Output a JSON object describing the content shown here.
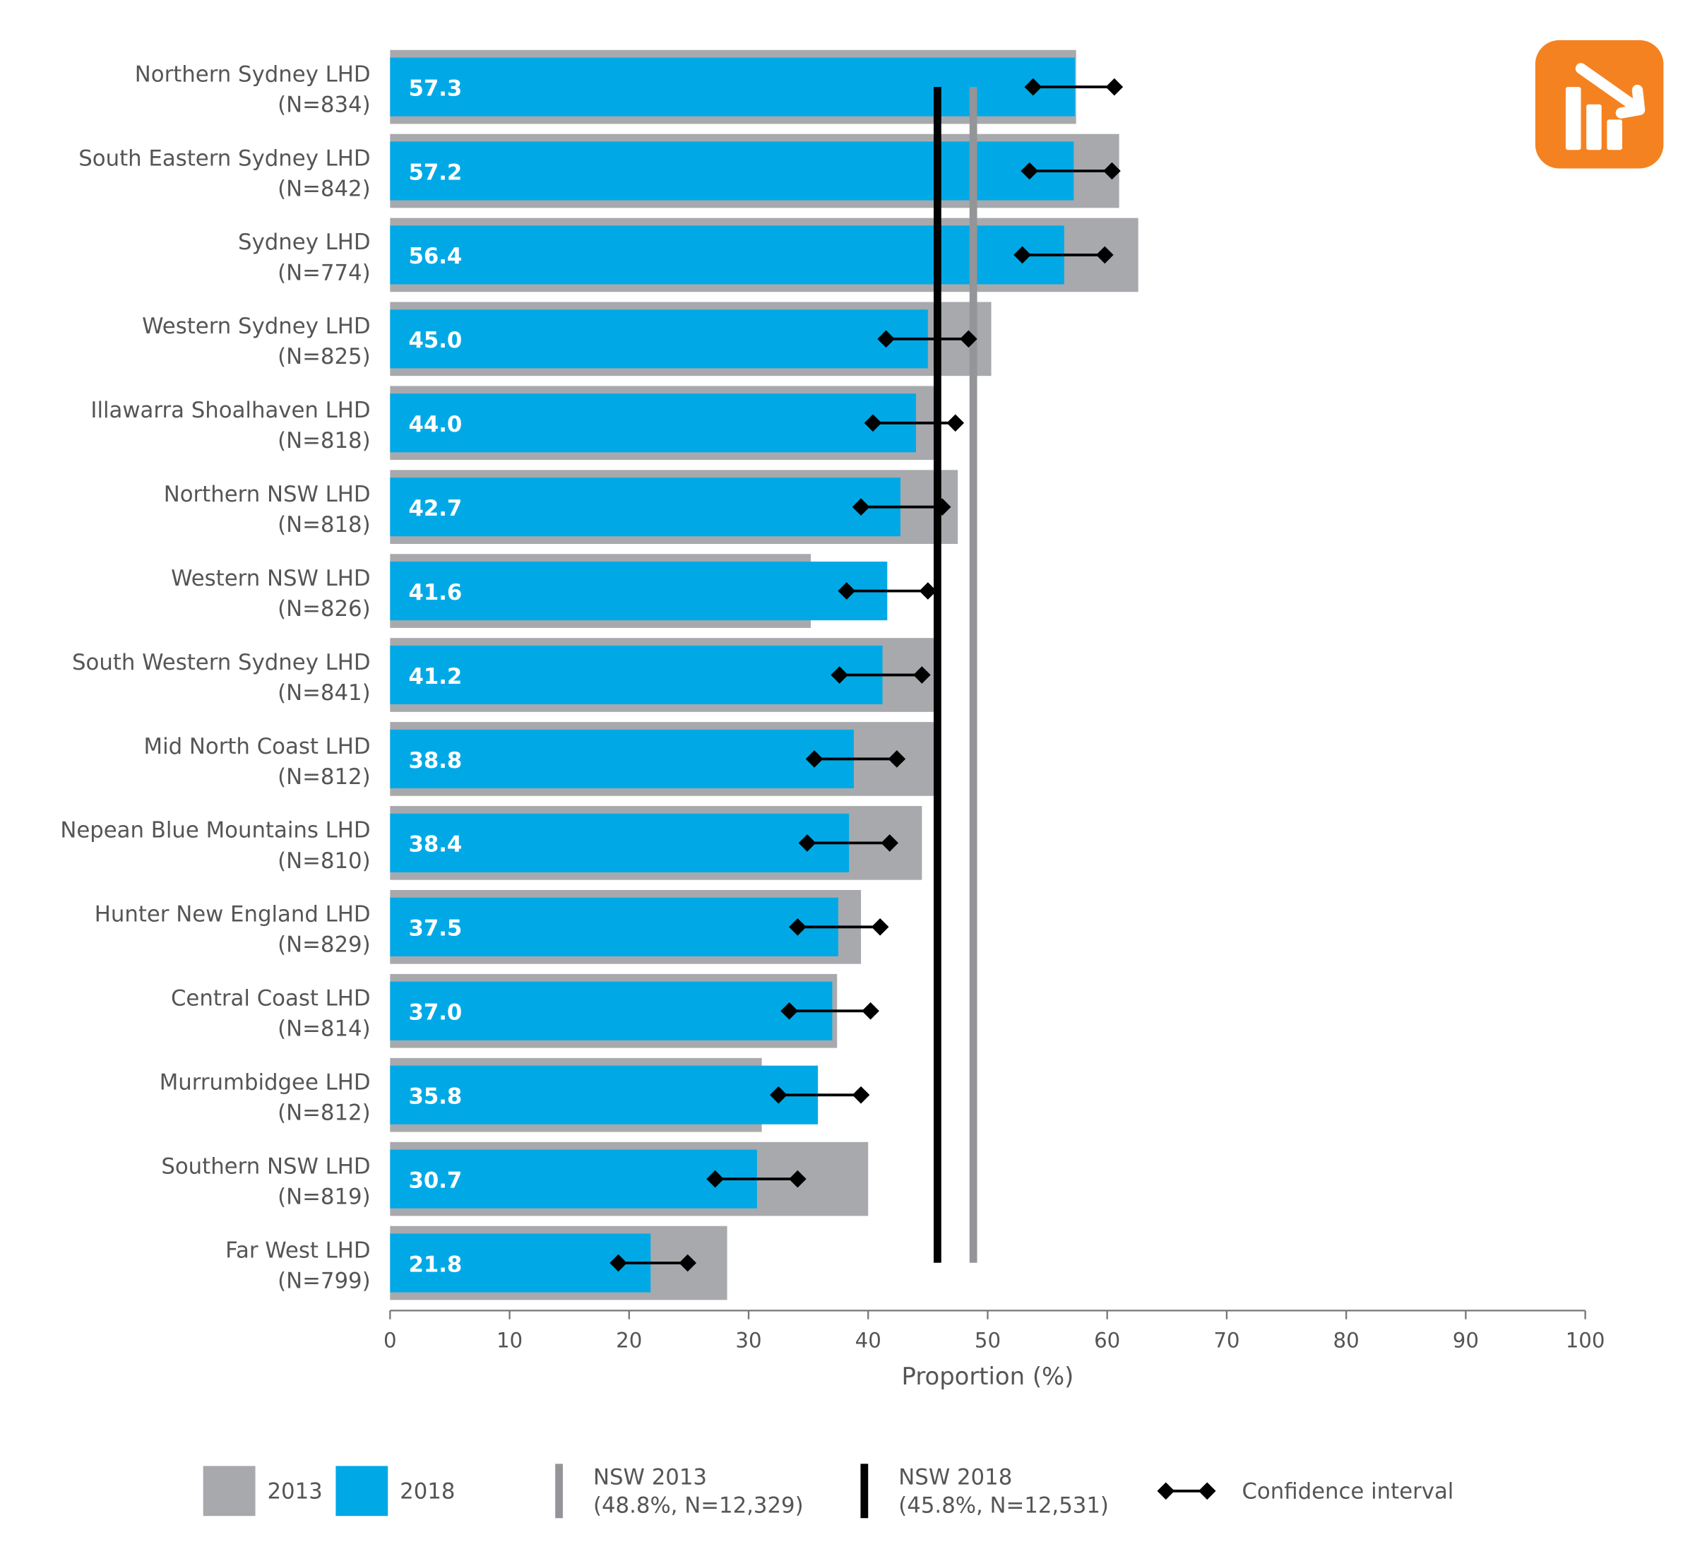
{
  "chart_data": {
    "type": "bar",
    "orientation": "horizontal",
    "xlabel": "Proportion (%)",
    "xlim": [
      0,
      100
    ],
    "xticks": [
      0,
      10,
      20,
      30,
      40,
      50,
      60,
      70,
      80,
      90,
      100
    ],
    "categories": [
      {
        "name": "Northern Sydney LHD",
        "n": "(N=834)"
      },
      {
        "name": "South Eastern Sydney LHD",
        "n": "(N=842)"
      },
      {
        "name": "Sydney LHD",
        "n": "(N=774)"
      },
      {
        "name": "Western Sydney LHD",
        "n": "(N=825)"
      },
      {
        "name": "Illawarra Shoalhaven LHD",
        "n": "(N=818)"
      },
      {
        "name": "Northern NSW LHD",
        "n": "(N=818)"
      },
      {
        "name": "Western NSW LHD",
        "n": "(N=826)"
      },
      {
        "name": "South Western Sydney LHD",
        "n": "(N=841)"
      },
      {
        "name": "Mid North Coast LHD",
        "n": "(N=812)"
      },
      {
        "name": "Nepean Blue Mountains LHD",
        "n": "(N=810)"
      },
      {
        "name": "Hunter New England LHD",
        "n": "(N=829)"
      },
      {
        "name": "Central Coast LHD",
        "n": "(N=814)"
      },
      {
        "name": "Murrumbidgee LHD",
        "n": "(N=812)"
      },
      {
        "name": "Southern NSW LHD",
        "n": "(N=819)"
      },
      {
        "name": "Far West LHD",
        "n": "(N=799)"
      }
    ],
    "series": [
      {
        "name": "2013",
        "color": "#a7a9ac",
        "values": [
          57.4,
          61.0,
          62.6,
          50.3,
          45.6,
          47.5,
          35.2,
          45.6,
          45.6,
          44.5,
          39.4,
          37.4,
          31.1,
          40.0,
          28.2
        ]
      },
      {
        "name": "2018",
        "color": "#00a9e6",
        "values": [
          57.3,
          57.2,
          56.4,
          45.0,
          44.0,
          42.7,
          41.6,
          41.2,
          38.8,
          38.4,
          37.5,
          37.0,
          35.8,
          30.7,
          21.8
        ],
        "labels": [
          "57.3",
          "57.2",
          "56.4",
          "45.0",
          "44.0",
          "42.7",
          "41.6",
          "41.2",
          "38.8",
          "38.4",
          "37.5",
          "37.0",
          "35.8",
          "30.7",
          "21.8"
        ]
      }
    ],
    "ci_2018": [
      [
        53.8,
        60.6
      ],
      [
        53.5,
        60.4
      ],
      [
        52.9,
        59.8
      ],
      [
        41.5,
        48.4
      ],
      [
        40.4,
        47.3
      ],
      [
        39.4,
        46.2
      ],
      [
        38.2,
        45.0
      ],
      [
        37.6,
        44.5
      ],
      [
        35.5,
        42.4
      ],
      [
        34.9,
        41.8
      ],
      [
        34.1,
        41.0
      ],
      [
        33.4,
        40.2
      ],
      [
        32.5,
        39.4
      ],
      [
        27.2,
        34.1
      ],
      [
        19.1,
        24.9
      ]
    ],
    "reference_lines": [
      {
        "name": "NSW 2013",
        "value": 48.8,
        "color": "#939598",
        "detail": "(48.8%, N=12,329)"
      },
      {
        "name": "NSW 2018",
        "value": 45.8,
        "color": "#000000",
        "detail": "(45.8%, N=12,531)"
      }
    ],
    "legend": {
      "position": "bottom",
      "items": [
        "2013",
        "2018",
        "NSW 2013",
        "NSW 2018",
        "Confidence interval"
      ]
    }
  },
  "icon": {
    "name": "trend-down-chart-icon",
    "color": "#f58220"
  }
}
